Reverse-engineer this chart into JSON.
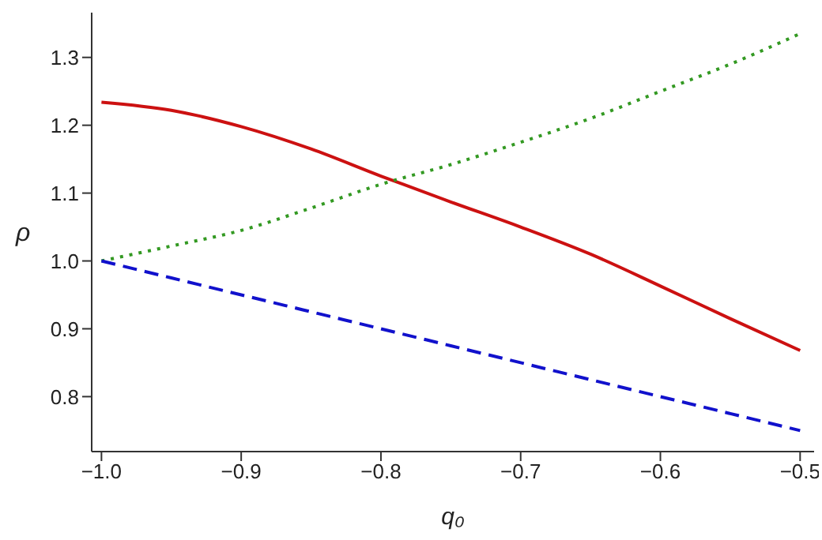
{
  "chart_data": {
    "type": "line",
    "xlabel": "q₀",
    "ylabel": "ρ",
    "x": [
      -1.0,
      -0.95,
      -0.9,
      -0.85,
      -0.8,
      -0.75,
      -0.7,
      -0.65,
      -0.6,
      -0.55,
      -0.5
    ],
    "series": [
      {
        "color": "#cc1111",
        "line_style": "solid",
        "values": [
          1.234,
          1.222,
          1.198,
          1.165,
          1.125,
          1.087,
          1.05,
          1.01,
          0.963,
          0.915,
          0.868
        ]
      },
      {
        "color": "#339922",
        "line_style": "dotted",
        "values": [
          1.0,
          1.022,
          1.045,
          1.078,
          1.113,
          1.142,
          1.175,
          1.21,
          1.25,
          1.29,
          1.335
        ]
      },
      {
        "color": "#1111cc",
        "line_style": "dashed",
        "values": [
          1.0,
          0.975,
          0.95,
          0.925,
          0.9,
          0.875,
          0.85,
          0.825,
          0.8,
          0.775,
          0.75
        ]
      }
    ],
    "xlim": [
      -1.007,
      -0.49
    ],
    "ylim": [
      0.719,
      1.366
    ],
    "xticks": [
      {
        "value": -1.0,
        "label": "−1.0"
      },
      {
        "value": -0.9,
        "label": "−0.9"
      },
      {
        "value": -0.8,
        "label": "−0.8"
      },
      {
        "value": -0.7,
        "label": "−0.7"
      },
      {
        "value": -0.6,
        "label": "−0.6"
      },
      {
        "value": -0.5,
        "label": "−0.5"
      }
    ],
    "yticks": [
      0.8,
      0.9,
      {
        "value": 1.0,
        "label": "1.0"
      },
      1.1,
      1.2,
      1.3
    ],
    "grid": false,
    "legend": false,
    "marker": "none"
  }
}
